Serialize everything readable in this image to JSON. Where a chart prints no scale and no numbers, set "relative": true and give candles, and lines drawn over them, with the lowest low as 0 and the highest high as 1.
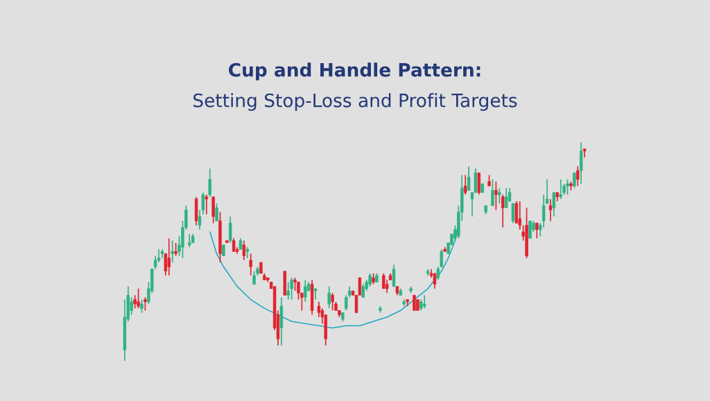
{
  "chart_data": {
    "type": "candlestick",
    "title": "Cup and Handle Pattern:",
    "subtitle": "Setting Stop-Loss and Profit Targets",
    "relative": true,
    "categories": [
      null,
      null,
      null,
      null,
      null,
      null,
      null,
      null,
      null,
      null,
      null,
      null,
      null,
      null,
      null,
      null,
      null,
      null,
      null,
      null,
      null,
      null,
      null,
      null,
      null,
      null,
      null,
      null,
      null,
      null,
      null,
      null,
      null,
      null,
      null,
      null,
      null,
      null,
      null,
      null,
      null,
      null,
      null,
      null,
      null,
      null,
      null,
      null,
      null,
      null,
      null,
      null,
      null,
      null,
      null,
      null,
      null,
      null,
      null,
      null,
      null,
      null,
      null,
      null,
      null,
      null,
      null,
      null,
      null,
      null,
      null,
      null,
      null,
      null,
      null,
      null,
      null,
      null,
      null,
      null,
      null,
      null,
      null,
      null,
      null,
      null,
      null,
      null,
      null,
      null,
      null,
      null,
      null,
      null,
      null,
      null,
      null,
      null,
      null,
      null,
      null,
      null,
      null,
      null,
      null,
      null,
      null,
      null,
      null,
      null,
      null,
      null,
      null,
      null,
      null,
      null,
      null,
      null,
      null,
      null,
      null,
      null,
      null,
      null,
      null,
      null,
      null,
      null,
      null,
      null,
      null,
      null,
      null,
      null,
      null,
      null
    ],
    "ohlc": [
      [
        0.05,
        0.28,
        0,
        0.2
      ],
      [
        0.19,
        0.34,
        0.18,
        0.3
      ],
      [
        0.23,
        0.29,
        0.21,
        0.27
      ],
      [
        0.28,
        0.3,
        0.24,
        0.26
      ],
      [
        0.27,
        0.33,
        0.24,
        0.25
      ],
      [
        0.24,
        0.28,
        0.22,
        0.26
      ],
      [
        0.28,
        0.29,
        0.23,
        0.27
      ],
      [
        0.27,
        0.36,
        0.26,
        0.33
      ],
      [
        0.32,
        0.42,
        0.31,
        0.42
      ],
      [
        0.43,
        0.48,
        0.42,
        0.46
      ],
      [
        0.46,
        0.51,
        0.45,
        0.47
      ],
      [
        0.49,
        0.51,
        0.47,
        0.5
      ],
      [
        0.49,
        0.49,
        0.39,
        0.41
      ],
      [
        0.47,
        0.56,
        0.39,
        0.43
      ],
      [
        0.49,
        0.55,
        0.45,
        0.5
      ],
      [
        0.5,
        0.54,
        0.48,
        0.49
      ],
      [
        0.5,
        0.57,
        0.48,
        0.53
      ],
      [
        0.52,
        0.64,
        0.47,
        0.61
      ],
      [
        0.61,
        0.71,
        0.6,
        0.69
      ],
      [
        0.53,
        0.58,
        0.52,
        0.54
      ],
      [
        0.54,
        0.58,
        0.54,
        0.57
      ],
      [
        0.74,
        0.75,
        0.62,
        0.64
      ],
      [
        0.62,
        0.69,
        0.6,
        0.66
      ],
      [
        0.69,
        0.77,
        0.67,
        0.76
      ],
      [
        0.75,
        0.76,
        0.67,
        0.74
      ],
      [
        0.76,
        0.88,
        0.75,
        0.83
      ],
      [
        0.75,
        0.75,
        0.63,
        0.66
      ],
      [
        0.64,
        0.72,
        0.64,
        0.7
      ],
      [
        0.64,
        0.68,
        0.45,
        0.49
      ],
      [
        0.48,
        0.53,
        0.48,
        0.53
      ],
      [
        0.55,
        0.55,
        0.54,
        0.54
      ],
      [
        0.55,
        0.66,
        0.54,
        0.63
      ],
      [
        0.55,
        0.56,
        0.5,
        0.5
      ],
      [
        0.51,
        0.52,
        0.49,
        0.5
      ],
      [
        0.51,
        0.56,
        0.51,
        0.55
      ],
      [
        0.53,
        0.55,
        0.46,
        0.48
      ],
      [
        0.5,
        0.52,
        0.47,
        0.51
      ],
      [
        0.46,
        0.49,
        0.39,
        0.43
      ],
      [
        0.35,
        0.41,
        0.35,
        0.39
      ],
      [
        0.4,
        0.43,
        0.39,
        0.42
      ],
      [
        0.45,
        0.45,
        0.4,
        0.4
      ],
      [
        0.39,
        0.4,
        0.37,
        0.37
      ],
      [
        0.38,
        0.38,
        0.36,
        0.37
      ],
      [
        0.36,
        0.36,
        0.33,
        0.33
      ],
      [
        0.34,
        0.34,
        0.14,
        0.15
      ],
      [
        0.21,
        0.23,
        0.07,
        0.1
      ],
      [
        0.15,
        0.29,
        0.07,
        0.25
      ],
      [
        0.41,
        0.41,
        0.3,
        0.3
      ],
      [
        0.3,
        0.36,
        0.28,
        0.32
      ],
      [
        0.33,
        0.38,
        0.28,
        0.37
      ],
      [
        0.37,
        0.38,
        0.32,
        0.36
      ],
      [
        0.36,
        0.36,
        0.28,
        0.31
      ],
      [
        0.31,
        0.31,
        0.23,
        0.29
      ],
      [
        0.29,
        0.37,
        0.27,
        0.34
      ],
      [
        0.32,
        0.36,
        0.32,
        0.35
      ],
      [
        0.35,
        0.37,
        0.21,
        0.23
      ],
      [
        0.32,
        0.33,
        0.28,
        0.33
      ],
      [
        0.25,
        0.27,
        0.2,
        0.22
      ],
      [
        0.23,
        0.24,
        0.17,
        0.2
      ],
      [
        0.21,
        0.21,
        0.07,
        0.1
      ],
      [
        0.26,
        0.34,
        0.24,
        0.31
      ],
      [
        0.3,
        0.31,
        0.23,
        0.27
      ],
      [
        0.26,
        0.27,
        0.23,
        0.23
      ],
      [
        0.23,
        0.23,
        0.2,
        0.21
      ],
      [
        0.19,
        0.22,
        0.18,
        0.22
      ],
      [
        0.24,
        0.3,
        0.23,
        0.29
      ],
      [
        0.3,
        0.34,
        0.29,
        0.32
      ],
      [
        0.32,
        0.32,
        0.3,
        0.3
      ],
      [
        0.3,
        0.3,
        0.22,
        0.22
      ],
      [
        0.38,
        0.38,
        0.3,
        0.3
      ],
      [
        0.29,
        0.35,
        0.29,
        0.34
      ],
      [
        0.33,
        0.37,
        0.32,
        0.36
      ],
      [
        0.35,
        0.4,
        0.34,
        0.39
      ],
      [
        0.38,
        0.4,
        0.35,
        0.36
      ],
      [
        0.36,
        0.4,
        0.36,
        0.39
      ],
      [
        0.23,
        0.25,
        0.22,
        0.24
      ],
      [
        0.39,
        0.4,
        0.33,
        0.33
      ],
      [
        0.35,
        0.37,
        0.31,
        0.33
      ],
      [
        0.39,
        0.4,
        0.37,
        0.37
      ],
      [
        0.34,
        0.44,
        0.34,
        0.42
      ],
      [
        0.34,
        0.34,
        0.3,
        0.31
      ],
      [
        0.3,
        0.33,
        0.3,
        0.32
      ],
      [
        0.26,
        0.28,
        0.25,
        0.27
      ],
      [
        0.28,
        0.28,
        0.25,
        0.27
      ],
      [
        0.32,
        0.34,
        0.31,
        0.33
      ],
      [
        0.3,
        0.3,
        0.23,
        0.23
      ],
      [
        0.28,
        0.28,
        0.23,
        0.23
      ],
      [
        0.24,
        0.28,
        0.23,
        0.27
      ],
      [
        0.25,
        0.3,
        0.24,
        0.26
      ],
      [
        0.4,
        0.42,
        0.39,
        0.41
      ],
      [
        0.4,
        0.42,
        0.38,
        0.39
      ],
      [
        0.4,
        0.4,
        0.33,
        0.35
      ],
      [
        0.38,
        0.43,
        0.37,
        0.42
      ],
      [
        0.43,
        0.51,
        0.43,
        0.5
      ],
      [
        0.51,
        0.52,
        0.5,
        0.5
      ],
      [
        0.49,
        0.54,
        0.49,
        0.54
      ],
      [
        0.53,
        0.58,
        0.53,
        0.58
      ],
      [
        0.56,
        0.62,
        0.55,
        0.6
      ],
      [
        0.57,
        0.71,
        0.56,
        0.68
      ],
      [
        0.68,
        0.85,
        0.64,
        0.79
      ],
      [
        0.8,
        0.85,
        0.76,
        0.77
      ],
      [
        0.78,
        0.89,
        0.78,
        0.84
      ],
      [
        0.74,
        0.77,
        0.66,
        0.77
      ],
      [
        0.77,
        0.88,
        0.77,
        0.86
      ],
      [
        0.86,
        0.86,
        0.76,
        0.77
      ],
      [
        0.77,
        0.81,
        0.77,
        0.81
      ],
      [
        0.68,
        0.71,
        0.67,
        0.71
      ],
      [
        0.82,
        0.85,
        0.8,
        0.8
      ],
      [
        0.71,
        0.83,
        0.71,
        0.78
      ],
      [
        0.78,
        0.82,
        0.69,
        0.76
      ],
      [
        0.76,
        0.79,
        0.72,
        0.77
      ],
      [
        0.75,
        0.76,
        0.61,
        0.7
      ],
      [
        0.7,
        0.79,
        0.7,
        0.75
      ],
      [
        0.73,
        0.79,
        0.73,
        0.77
      ],
      [
        0.64,
        0.72,
        0.63,
        0.72
      ],
      [
        0.72,
        0.73,
        0.63,
        0.63
      ],
      [
        0.65,
        0.73,
        0.6,
        0.62
      ],
      [
        0.59,
        0.62,
        0.55,
        0.57
      ],
      [
        0.62,
        0.7,
        0.47,
        0.48
      ],
      [
        0.56,
        0.64,
        0.56,
        0.64
      ],
      [
        0.6,
        0.64,
        0.59,
        0.63
      ],
      [
        0.63,
        0.63,
        0.56,
        0.6
      ],
      [
        0.6,
        0.63,
        0.57,
        0.62
      ],
      [
        0.64,
        0.76,
        0.61,
        0.71
      ],
      [
        0.72,
        0.83,
        0.72,
        0.74
      ],
      [
        0.71,
        0.74,
        0.64,
        0.69
      ],
      [
        0.7,
        0.77,
        0.66,
        0.77
      ],
      [
        0.77,
        0.77,
        0.73,
        0.75
      ],
      [
        0.75,
        0.83,
        0.74,
        0.76
      ],
      [
        0.77,
        0.81,
        0.76,
        0.8
      ],
      [
        0.8,
        0.83,
        0.76,
        0.81
      ],
      [
        0.81,
        0.82,
        0.78,
        0.8
      ],
      [
        0.8,
        0.86,
        0.79,
        0.86
      ],
      [
        0.87,
        0.89,
        0.8,
        0.83
      ],
      [
        0.87,
        1.0,
        0.81,
        0.96
      ],
      [
        0.97,
        0.97,
        0.93,
        0.96
      ]
    ],
    "series": [
      {
        "type": "line",
        "color": "#1ea7c4",
        "values": [
          null,
          null,
          null,
          null,
          null,
          null,
          null,
          null,
          null,
          null,
          null,
          null,
          null,
          null,
          null,
          null,
          null,
          null,
          null,
          null,
          null,
          null,
          null,
          null,
          null,
          0.59,
          null,
          0.49,
          null,
          0.43,
          null,
          null,
          null,
          0.34,
          null,
          null,
          null,
          0.28,
          null,
          null,
          null,
          0.24,
          null,
          null,
          null,
          0.21,
          null,
          null,
          null,
          0.18,
          null,
          null,
          null,
          0.17,
          null,
          null,
          null,
          0.16,
          null,
          null,
          null,
          0.15,
          null,
          null,
          null,
          0.16,
          null,
          null,
          null,
          0.16,
          null,
          null,
          null,
          0.18,
          null,
          null,
          null,
          0.2,
          null,
          null,
          null,
          0.23,
          null,
          null,
          null,
          0.28,
          null,
          null,
          null,
          0.33,
          null,
          null,
          null,
          0.41,
          null,
          0.47,
          null,
          0.55,
          0.63,
          null,
          null,
          null,
          null,
          null,
          null,
          null,
          null,
          null,
          null,
          null,
          null,
          null,
          null,
          null,
          null,
          null,
          null,
          null,
          null,
          null,
          null,
          null,
          null,
          null,
          null,
          null,
          null,
          null,
          null,
          null,
          null,
          null,
          null,
          null,
          null,
          null
        ]
      }
    ],
    "colors": [
      "#2fb283",
      "#2fb283",
      "#2fb283",
      "#e0222d",
      "#e0222d",
      "#2fb283",
      "#e0222d",
      "#2fb283",
      "#2fb283",
      "#2fb283",
      "#2fb283",
      "#2fb283",
      "#e0222d",
      "#e0222d",
      "#2fb283",
      "#e0222d",
      "#2fb283",
      "#2fb283",
      "#2fb283",
      "#2fb283",
      "#2fb283",
      "#e0222d",
      "#2fb283",
      "#2fb283",
      "#e0222d",
      "#2fb283",
      "#e0222d",
      "#2fb283",
      "#e0222d",
      "#2fb283",
      "#e0222d",
      "#2fb283",
      "#e0222d",
      "#e0222d",
      "#2fb283",
      "#e0222d",
      "#2fb283",
      "#e0222d",
      "#2fb283",
      "#2fb283",
      "#e0222d",
      "#e0222d",
      "#e0222d",
      "#e0222d",
      "#e0222d",
      "#e0222d",
      "#2fb283",
      "#e0222d",
      "#2fb283",
      "#2fb283",
      "#e0222d",
      "#e0222d",
      "#e0222d",
      "#2fb283",
      "#2fb283",
      "#e0222d",
      "#2fb283",
      "#e0222d",
      "#e0222d",
      "#e0222d",
      "#2fb283",
      "#e0222d",
      "#e0222d",
      "#e0222d",
      "#2fb283",
      "#2fb283",
      "#2fb283",
      "#e0222d",
      "#e0222d",
      "#e0222d",
      "#2fb283",
      "#2fb283",
      "#2fb283",
      "#e0222d",
      "#2fb283",
      "#2fb283",
      "#e0222d",
      "#e0222d",
      "#e0222d",
      "#2fb283",
      "#e0222d",
      "#2fb283",
      "#2fb283",
      "#e0222d",
      "#2fb283",
      "#e0222d",
      "#e0222d",
      "#2fb283",
      "#2fb283",
      "#2fb283",
      "#e0222d",
      "#e0222d",
      "#2fb283",
      "#2fb283",
      "#e0222d",
      "#2fb283",
      "#2fb283",
      "#2fb283",
      "#2fb283",
      "#2fb283",
      "#e0222d",
      "#2fb283",
      "#2fb283",
      "#2fb283",
      "#e0222d",
      "#2fb283",
      "#2fb283",
      "#e0222d",
      "#2fb283",
      "#e0222d",
      "#2fb283",
      "#e0222d",
      "#2fb283",
      "#2fb283",
      "#2fb283",
      "#e0222d",
      "#e0222d",
      "#e0222d",
      "#e0222d",
      "#2fb283",
      "#2fb283",
      "#e0222d",
      "#2fb283",
      "#2fb283",
      "#2fb283",
      "#e0222d",
      "#2fb283",
      "#e0222d",
      "#2fb283",
      "#2fb283",
      "#2fb283",
      "#e0222d",
      "#2fb283",
      "#e0222d",
      "#2fb283",
      "#e0222d"
    ]
  }
}
